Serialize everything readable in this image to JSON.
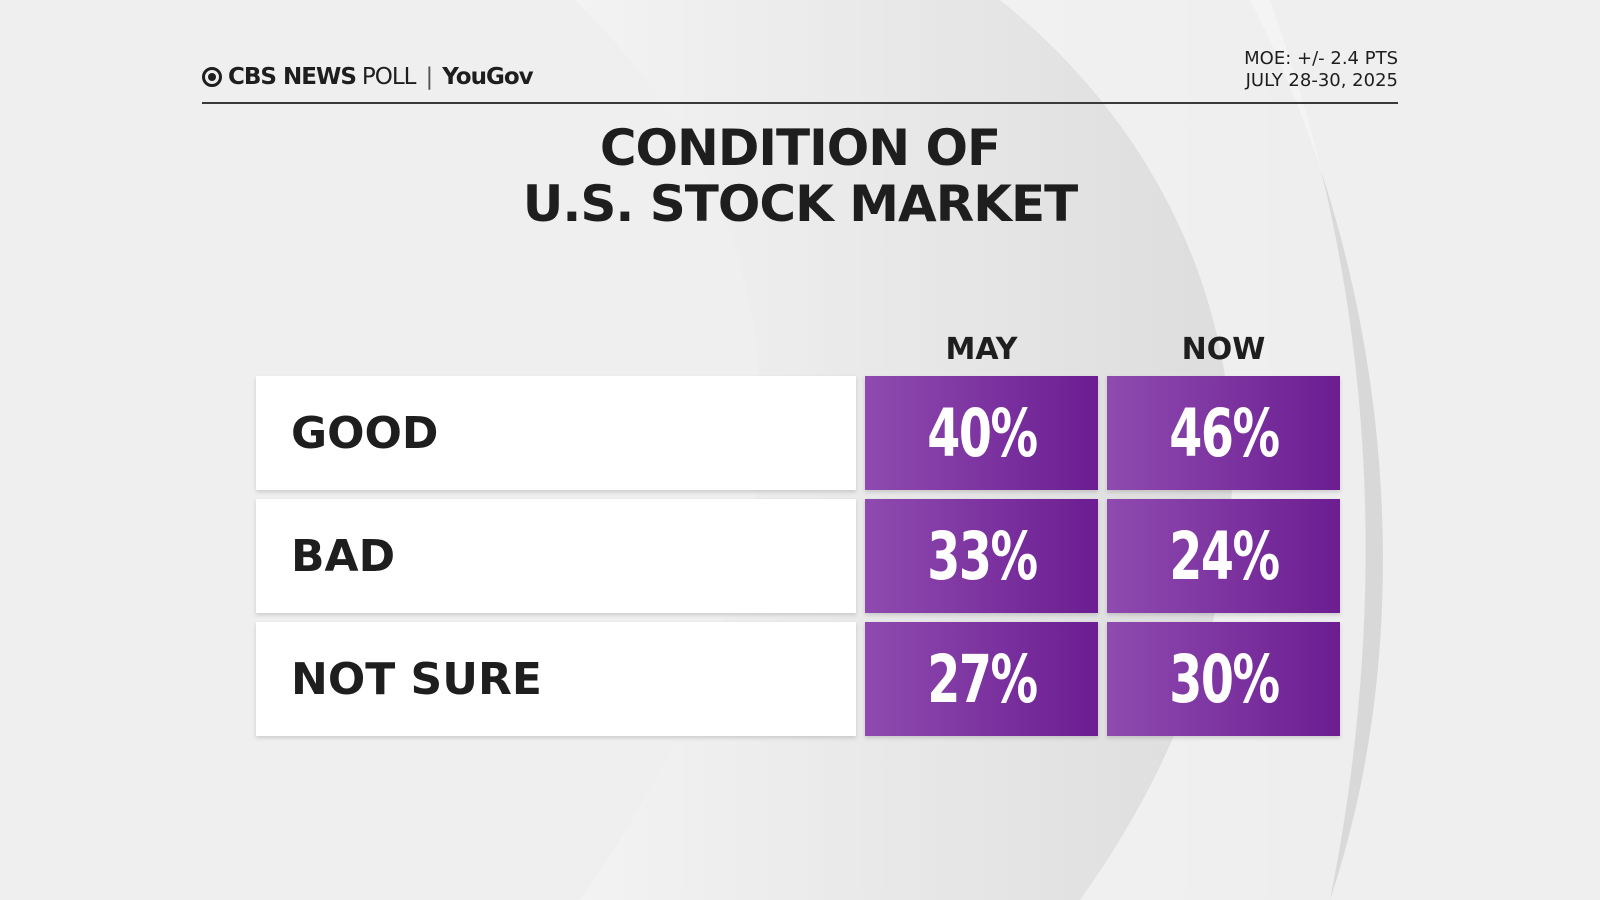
{
  "header": {
    "brand": "CBS NEWS",
    "poll": "POLL",
    "partner": "YouGov",
    "moe": "MOE: +/- 2.4 PTS",
    "dates": "JULY 28-30, 2025"
  },
  "chart_data": {
    "type": "table",
    "title": "CONDITION OF U.S. STOCK MARKET",
    "title_lines": [
      "CONDITION OF",
      "U.S. STOCK MARKET"
    ],
    "columns": [
      "MAY",
      "NOW"
    ],
    "rows": [
      {
        "label": "GOOD",
        "values": [
          "40%",
          "46%"
        ]
      },
      {
        "label": "BAD",
        "values": [
          "33%",
          "24%"
        ]
      },
      {
        "label": "NOT SURE",
        "values": [
          "27%",
          "30%"
        ]
      }
    ],
    "cell_color_start": "#8f4bb0",
    "cell_color_end": "#6b1d91"
  }
}
